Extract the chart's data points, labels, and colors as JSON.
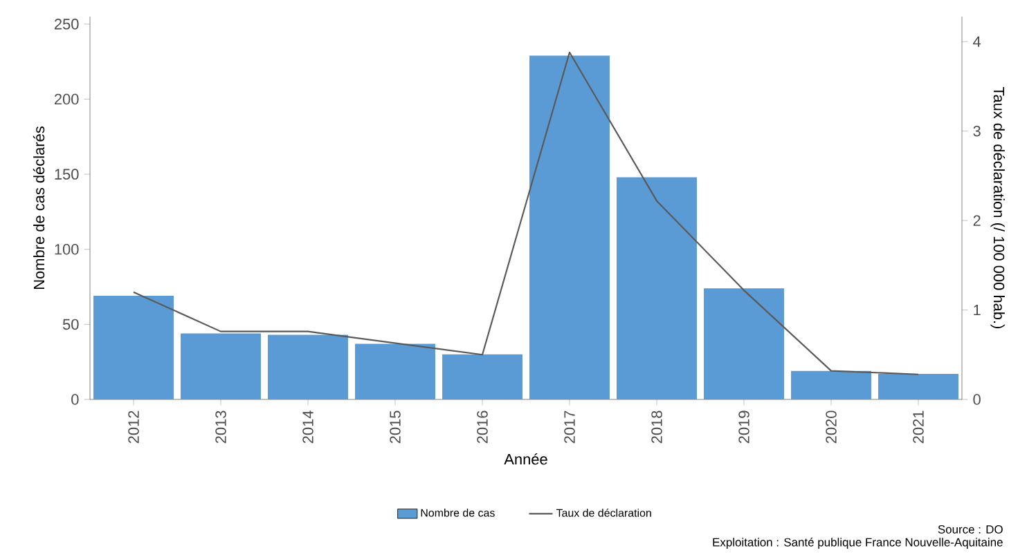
{
  "chart_data": {
    "type": "bar",
    "xlabel": "Année",
    "ylabel": "Nombre de cas déclarés",
    "y2label": "Taux de déclaration (/ 100 000 hab.)",
    "categories": [
      "2012",
      "2013",
      "2014",
      "2015",
      "2016",
      "2017",
      "2018",
      "2019",
      "2020",
      "2021"
    ],
    "series": [
      {
        "name": "Nombre de cas",
        "color": "#5b9bd5",
        "values": [
          69,
          44,
          43,
          37,
          30,
          229,
          148,
          74,
          19,
          17
        ]
      },
      {
        "name": "Taux de déclaration",
        "type": "line",
        "axis": "y2",
        "color": "#595959",
        "values": [
          1.2,
          0.76,
          0.76,
          0.63,
          0.5,
          3.88,
          2.22,
          1.22,
          0.32,
          0.28
        ]
      }
    ],
    "ylim": [
      0,
      255
    ],
    "yticks": [
      0,
      50,
      100,
      150,
      200,
      250
    ],
    "y2lim": [
      0,
      4.28
    ],
    "y2ticks": [
      0,
      1,
      2,
      3,
      4
    ],
    "grid": false,
    "legend": "bottom",
    "marker": "none",
    "annotations": [
      "Source : DO",
      "Exploitation : Santé publique France Nouvelle-Aquitaine"
    ]
  }
}
